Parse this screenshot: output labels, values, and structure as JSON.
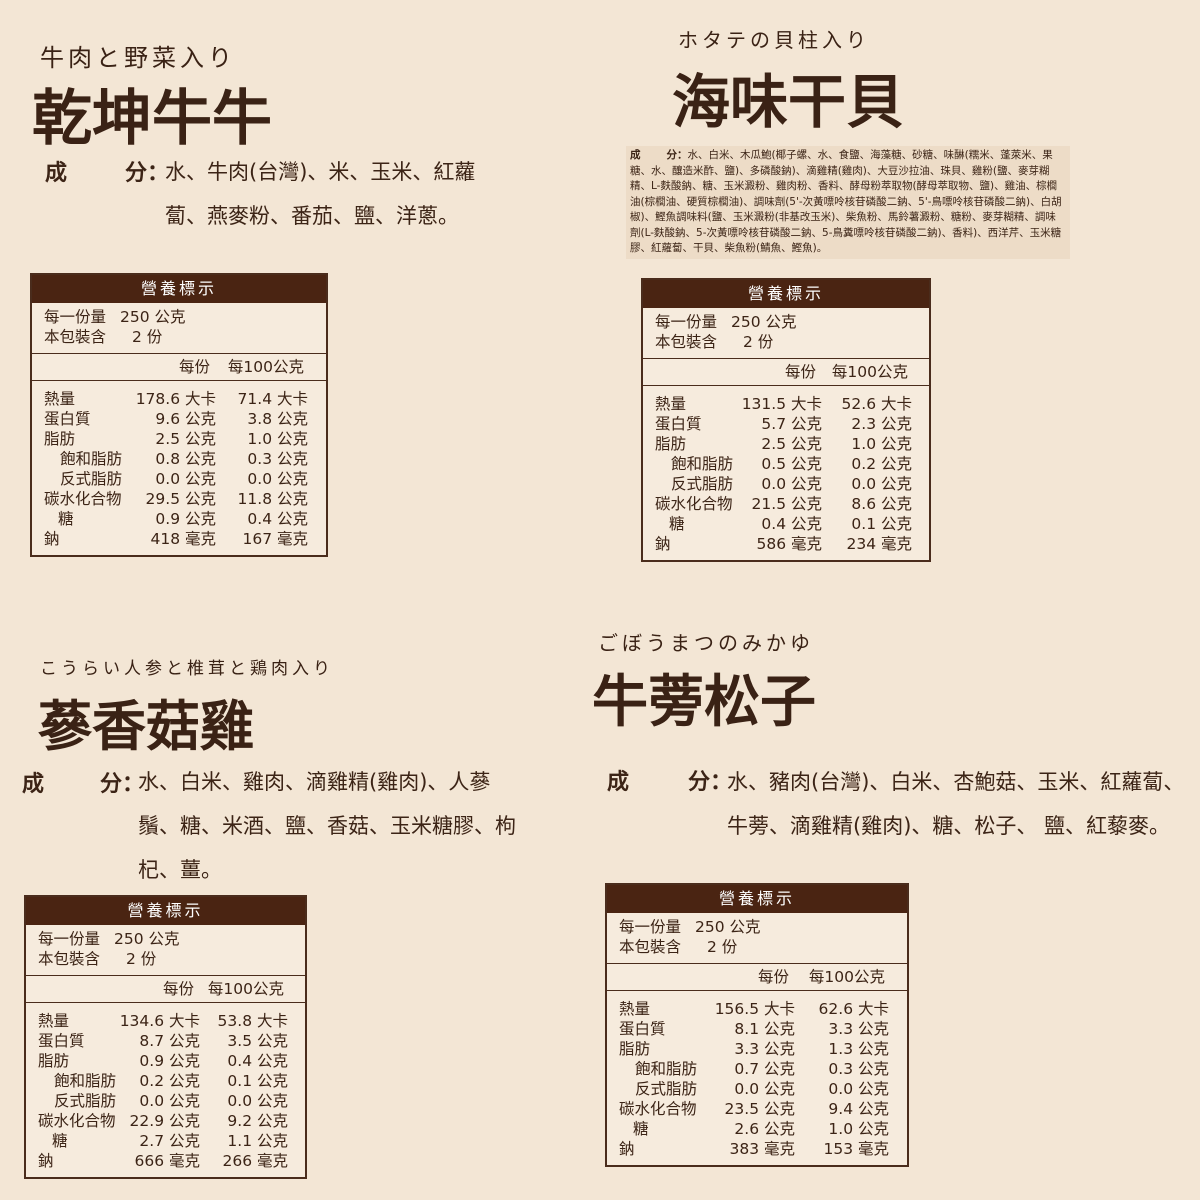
{
  "panels": [
    {
      "subtitle": "牛肉と野菜入り",
      "title": "乾坤牛牛",
      "ingredients_label_1": "成",
      "ingredients_label_2": "分：",
      "ingredients": "水、牛肉(台灣)、米、玉米、紅蘿蔔、燕麥粉、番茄、鹽、洋蔥。",
      "nutrition": {
        "header": "營養標示",
        "serving_label": "每一份量",
        "serving": "250 公克",
        "pack_label": "本包裝含",
        "pack": "2 份",
        "col1": "每份",
        "col2": "每100公克",
        "rows": [
          [
            "熱量",
            "178.6 大卡",
            "71.4 大卡"
          ],
          [
            "蛋白質",
            "9.6 公克",
            "3.8 公克"
          ],
          [
            "脂肪",
            "2.5 公克",
            "1.0 公克"
          ],
          [
            "飽和脂肪",
            "0.8 公克",
            "0.3 公克"
          ],
          [
            "反式脂肪",
            "0.0 公克",
            "0.0 公克"
          ],
          [
            "碳水化合物",
            "29.5 公克",
            "11.8 公克"
          ],
          [
            "糖",
            "0.9 公克",
            "0.4 公克"
          ],
          [
            "鈉",
            "418 毫克",
            "167 毫克"
          ]
        ]
      }
    },
    {
      "subtitle": "ホタテの貝柱入り",
      "title": "海味干貝",
      "ingredients_label_1": "成",
      "ingredients_label_2": "分：",
      "ingredients": "水、白米、木瓜鮑(椰子螺、水、食鹽、海藻糖、砂糖、味醂(糯米、蓬萊米、果糖、水、釀造米酢、鹽)、多磷酸鈉)、滴雞精(雞肉)、大豆沙拉油、珠貝、雞粉(鹽、麥芽糊精、L-麩酸鈉、糖、玉米澱粉、雞肉粉、香料、酵母粉萃取物(酵母萃取物、鹽)、雞油、棕櫚油(棕櫚油、硬質棕櫚油)、調味劑(5'-次黃嘌呤核苷磷酸二鈉、5'-鳥嘌呤核苷磷酸二鈉)、白胡椒)、鰹魚調味料(鹽、玉米澱粉(非基改玉米)、柴魚粉、馬鈴薯澱粉、糖粉、麥芽糊精、調味劑(L-麩酸鈉、5-次黃嘌呤核苷磷酸二鈉、5-鳥糞嘌呤核苷磷酸二鈉)、香料)、西洋芹、玉米糖膠、紅蘿蔔、干貝、柴魚粉(鯖魚、鰹魚)。",
      "nutrition": {
        "header": "營養標示",
        "serving_label": "每一份量",
        "serving": "250 公克",
        "pack_label": "本包裝含",
        "pack": "2 份",
        "col1": "每份",
        "col2": "每100公克",
        "rows": [
          [
            "熱量",
            "131.5 大卡",
            "52.6 大卡"
          ],
          [
            "蛋白質",
            "5.7 公克",
            "2.3 公克"
          ],
          [
            "脂肪",
            "2.5 公克",
            "1.0 公克"
          ],
          [
            "飽和脂肪",
            "0.5 公克",
            "0.2 公克"
          ],
          [
            "反式脂肪",
            "0.0 公克",
            "0.0 公克"
          ],
          [
            "碳水化合物",
            "21.5 公克",
            "8.6 公克"
          ],
          [
            "糖",
            "0.4 公克",
            "0.1 公克"
          ],
          [
            "鈉",
            "586 毫克",
            "234 毫克"
          ]
        ]
      }
    },
    {
      "subtitle": "こうらい人参と椎茸と鶏肉入り",
      "title": "蔘香菇雞",
      "ingredients_label_1": "成",
      "ingredients_label_2": "分：",
      "ingredients": "水、白米、雞肉、滴雞精(雞肉)、人蔘鬚、糖、米酒、鹽、香菇、玉米糖膠、枸杞、薑。",
      "nutrition": {
        "header": "營養標示",
        "serving_label": "每一份量",
        "serving": "250 公克",
        "pack_label": "本包裝含",
        "pack": "2 份",
        "col1": "每份",
        "col2": "每100公克",
        "rows": [
          [
            "熱量",
            "134.6 大卡",
            "53.8 大卡"
          ],
          [
            "蛋白質",
            "8.7 公克",
            "3.5 公克"
          ],
          [
            "脂肪",
            "0.9 公克",
            "0.4 公克"
          ],
          [
            "飽和脂肪",
            "0.2 公克",
            "0.1 公克"
          ],
          [
            "反式脂肪",
            "0.0 公克",
            "0.0 公克"
          ],
          [
            "碳水化合物",
            "22.9 公克",
            "9.2 公克"
          ],
          [
            "糖",
            "2.7 公克",
            "1.1 公克"
          ],
          [
            "鈉",
            "666 毫克",
            "266 毫克"
          ]
        ]
      }
    },
    {
      "subtitle": "ごぼうまつのみかゆ",
      "title": "牛蒡松子",
      "ingredients_label_1": "成",
      "ingredients_label_2": "分：",
      "ingredients": "水、豬肉(台灣)、白米、杏鮑菇、玉米、紅蘿蔔、牛蒡、滴雞精(雞肉)、糖、松子、 鹽、紅藜麥。",
      "nutrition": {
        "header": "營養標示",
        "serving_label": "每一份量",
        "serving": "250 公克",
        "pack_label": "本包裝含",
        "pack": "2 份",
        "col1": "每份",
        "col2": "每100公克",
        "rows": [
          [
            "熱量",
            "156.5 大卡",
            "62.6 大卡"
          ],
          [
            "蛋白質",
            "8.1 公克",
            "3.3 公克"
          ],
          [
            "脂肪",
            "3.3 公克",
            "1.3 公克"
          ],
          [
            "飽和脂肪",
            "0.7 公克",
            "0.3 公克"
          ],
          [
            "反式脂肪",
            "0.0 公克",
            "0.0 公克"
          ],
          [
            "碳水化合物",
            "23.5 公克",
            "9.4 公克"
          ],
          [
            "糖",
            "2.6 公克",
            "1.0 公克"
          ],
          [
            "鈉",
            "383 毫克",
            "153 毫克"
          ]
        ]
      }
    }
  ]
}
